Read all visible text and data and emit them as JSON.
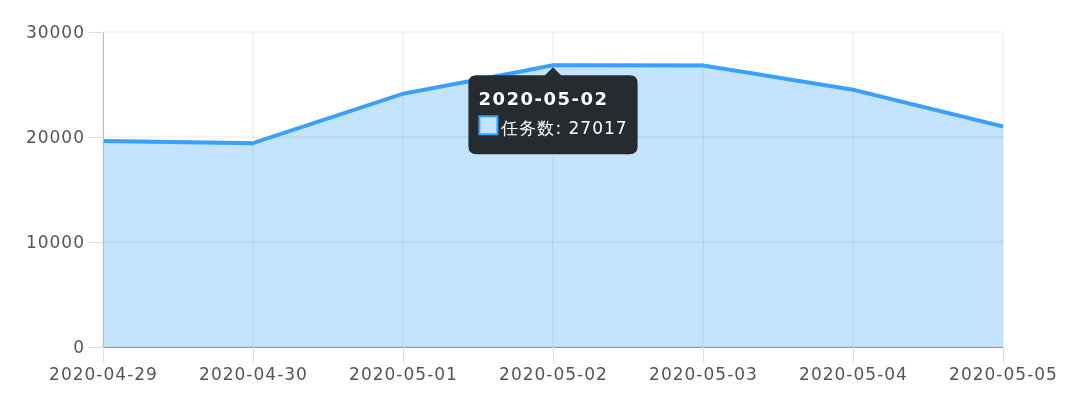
{
  "chart_data": {
    "type": "area",
    "categories": [
      "2020-04-29",
      "2020-04-30",
      "2020-05-01",
      "2020-05-02",
      "2020-05-03",
      "2020-05-04",
      "2020-05-05"
    ],
    "series": [
      {
        "color": "#3aa0ff",
        "values": [
          19800,
          19600,
          24300,
          27017,
          27000,
          24700,
          21200
        ]
      }
    ],
    "ylim": [
      0,
      30000
    ],
    "yticks": [
      0,
      10000,
      20000,
      30000
    ],
    "grid": true,
    "annotations": [
      {
        "text": "2020-05-02",
        "x": "2020-05-02",
        "y": 27017
      },
      "任务数: 27017"
    ]
  }
}
